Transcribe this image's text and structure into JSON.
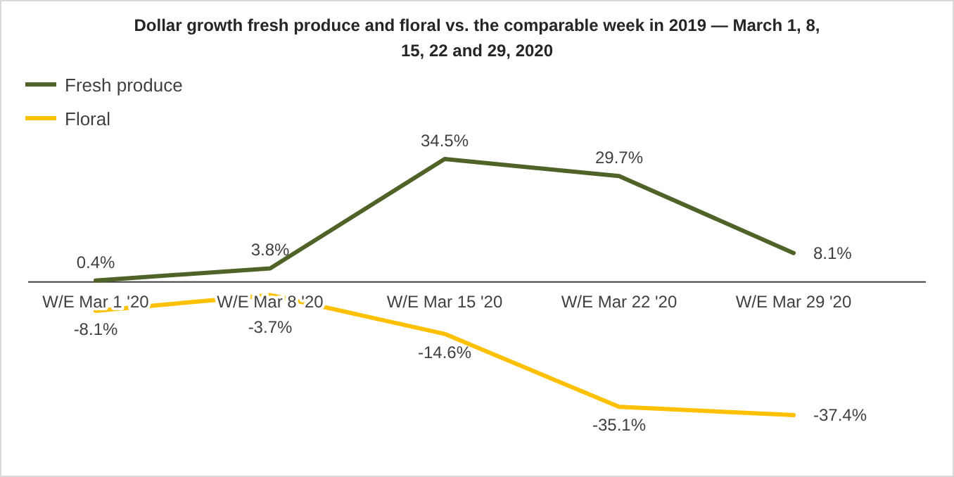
{
  "chart_data": {
    "type": "line",
    "title": "Dollar growth fresh produce and floral vs. the comparable week in 2019  — March 1, 8, 15, 22 and 29, 2020",
    "categories": [
      "W/E Mar 1 '20",
      "W/E Mar 8 '20",
      "W/E Mar 15 '20",
      "W/E Mar 22 '20",
      "W/E Mar 29 '20"
    ],
    "series": [
      {
        "name": "Fresh produce",
        "color": "#4f6228",
        "values": [
          0.4,
          3.8,
          34.5,
          29.7,
          8.1
        ],
        "value_labels": [
          "0.4%",
          "3.8%",
          "34.5%",
          "29.7%",
          "8.1%"
        ]
      },
      {
        "name": "Floral",
        "color": "#ffc000",
        "values": [
          -8.1,
          -3.7,
          -14.6,
          -35.1,
          -37.4
        ],
        "value_labels": [
          "-8.1%",
          "-3.7%",
          "-14.6%",
          "-35.1%",
          "-37.4%"
        ]
      }
    ],
    "legend": "top left",
    "marker": "none",
    "line_style": "solid"
  }
}
